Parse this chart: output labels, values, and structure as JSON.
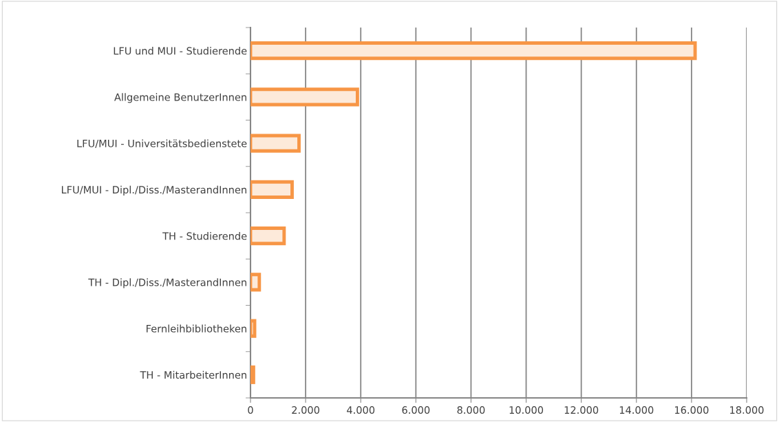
{
  "chart_data": {
    "type": "bar",
    "orientation": "horizontal",
    "categories": [
      "LFU und MUI - Studierende",
      "Allgemeine BenutzerInnen",
      "LFU/MUI - Universitätsbedienstete",
      "LFU/MUI - Dipl./Diss./MasterandInnen",
      "TH - Studierende",
      "TH - Dipl./Diss./MasterandInnen",
      "Fernleihbibliotheken",
      "TH - MitarbeiterInnen"
    ],
    "values": [
      16130,
      3880,
      1760,
      1510,
      1220,
      320,
      150,
      110
    ],
    "color": "#f79646",
    "xlim": [
      0,
      18000
    ],
    "xticks": [
      {
        "value": 0,
        "label": "0"
      },
      {
        "value": 2000,
        "label": "2.000"
      },
      {
        "value": 4000,
        "label": "4.000"
      },
      {
        "value": 6000,
        "label": "6.000"
      },
      {
        "value": 8000,
        "label": "8.000"
      },
      {
        "value": 10000,
        "label": "10.000"
      },
      {
        "value": 12000,
        "label": "12.000"
      },
      {
        "value": 14000,
        "label": "14.000"
      },
      {
        "value": 16000,
        "label": "16.000"
      },
      {
        "value": 18000,
        "label": "18.000"
      }
    ],
    "grid": "x",
    "legend": false
  }
}
